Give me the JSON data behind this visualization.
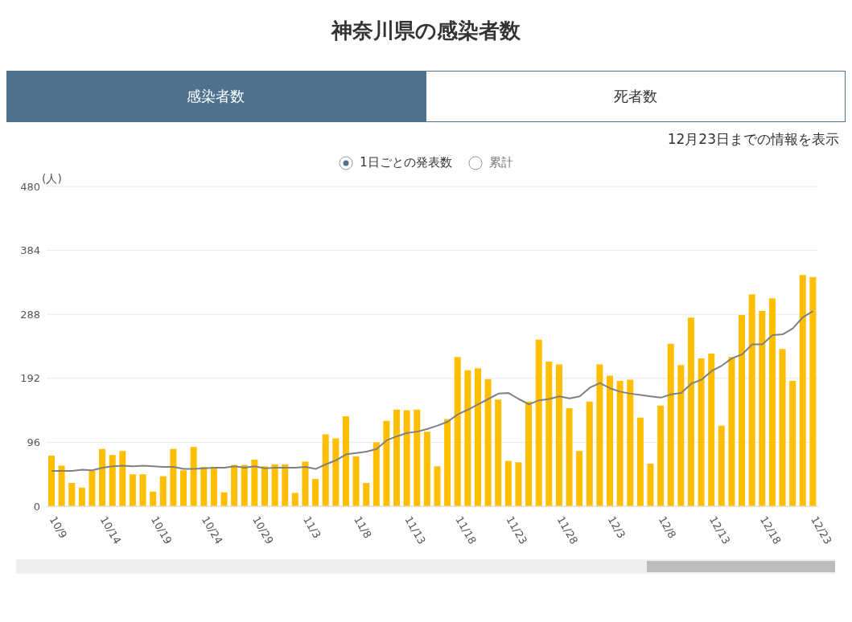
{
  "chart_data": {
    "type": "bar",
    "title": "神奈川県の感染者数",
    "subtitle": "12月23日までの情報を表示",
    "ylabel": "(人)",
    "annotations": [
      "感染者数",
      "死者数",
      "1日ごとの発表数",
      "累計"
    ],
    "categories": [
      "10/9",
      null,
      null,
      null,
      null,
      "10/14",
      null,
      null,
      null,
      null,
      "10/19",
      null,
      null,
      null,
      null,
      "10/24",
      null,
      null,
      null,
      null,
      "10/29",
      null,
      null,
      null,
      null,
      "11/3",
      null,
      null,
      null,
      null,
      "11/8",
      null,
      null,
      null,
      null,
      "11/13",
      null,
      null,
      null,
      null,
      "11/18",
      null,
      null,
      null,
      null,
      "11/23",
      null,
      null,
      null,
      null,
      "11/28",
      null,
      null,
      null,
      null,
      "12/3",
      null,
      null,
      null,
      null,
      "12/8",
      null,
      null,
      null,
      null,
      "12/13",
      null,
      null,
      null,
      null,
      "12/18",
      null,
      null,
      null,
      null,
      "12/23"
    ],
    "series": [
      {
        "color": "#ffbf00",
        "values": [
          76,
          61,
          35,
          28,
          53,
          86,
          77,
          83,
          48,
          48,
          22,
          45,
          86,
          54,
          89,
          59,
          59,
          21,
          62,
          62,
          70,
          60,
          63,
          63,
          20,
          67,
          41,
          108,
          102,
          135,
          75,
          35,
          96,
          128,
          145,
          144,
          145,
          112,
          60,
          131,
          224,
          204,
          207,
          191,
          160,
          68,
          66,
          157,
          250,
          217,
          213,
          147,
          83,
          157,
          213,
          196,
          188,
          190,
          133,
          64,
          151,
          244,
          212,
          283,
          222,
          229,
          121,
          224,
          287,
          318,
          293,
          312,
          236,
          188,
          347,
          344
        ]
      },
      {
        "type": "line",
        "color": "#808080",
        "values": [
          53,
          53,
          53,
          55,
          54,
          58,
          60,
          61,
          60,
          61,
          60,
          59,
          59,
          56,
          56,
          57,
          58,
          58,
          60,
          58,
          60,
          57,
          58,
          58,
          58,
          59,
          56,
          63,
          69,
          78,
          80,
          82,
          86,
          99,
          105,
          110,
          112,
          116,
          121,
          127,
          138,
          145,
          153,
          161,
          169,
          170,
          161,
          153,
          159,
          161,
          165,
          162,
          165,
          178,
          185,
          177,
          172,
          169,
          167,
          165,
          163,
          168,
          170,
          184,
          190,
          203,
          211,
          222,
          228,
          243,
          243,
          257,
          258,
          267,
          284,
          293
        ]
      }
    ],
    "ylim": [
      0,
      480
    ],
    "yticks": [
      0,
      96,
      192,
      288,
      384,
      480
    ],
    "grid": "y",
    "legend": false
  }
}
